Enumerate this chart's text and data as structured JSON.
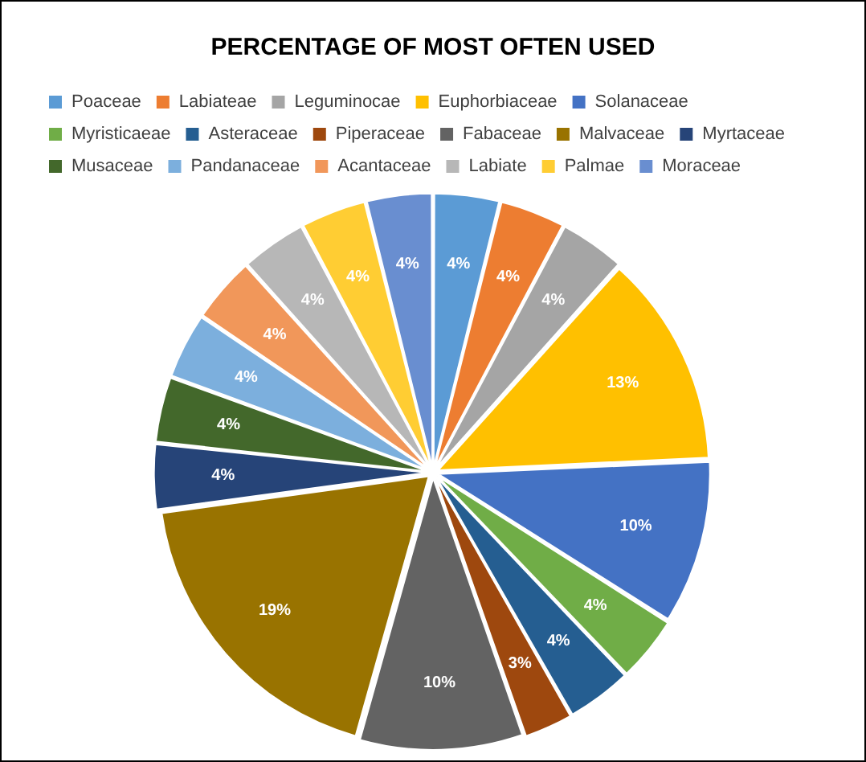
{
  "chart_data": {
    "type": "pie",
    "title": "PERCENTAGE OF MOST OFTEN USED",
    "categories": [
      "Poaceae",
      "Labiateae",
      "Leguminocae",
      "Euphorbiaceae",
      "Solanaceae",
      "Myristicaeae",
      "Asteraceae",
      "Piperaceae",
      "Fabaceae",
      "Malvaceae",
      "Myrtaceae",
      "Musaceae",
      "Pandanaceae",
      "Acantaceae",
      "Labiate",
      "Palmae",
      "Moraceae"
    ],
    "values": [
      4,
      4,
      4,
      13,
      10,
      4,
      4,
      3,
      10,
      19,
      4,
      4,
      4,
      4,
      4,
      4,
      4
    ],
    "colors": [
      "#5b9bd5",
      "#ed7d31",
      "#a5a5a5",
      "#ffc000",
      "#4472c4",
      "#70ad47",
      "#255e91",
      "#9e480e",
      "#636363",
      "#997300",
      "#264478",
      "#43682b",
      "#7cafdd",
      "#f1975a",
      "#b7b7b7",
      "#ffcd33",
      "#698ed0"
    ],
    "value_labels": [
      "4%",
      "4%",
      "4%",
      "13%",
      "10%",
      "4%",
      "4%",
      "3%",
      "10%",
      "19%",
      "4%",
      "4%",
      "4%",
      "4%",
      "4%",
      "4%",
      "4%"
    ],
    "legend": "top"
  }
}
